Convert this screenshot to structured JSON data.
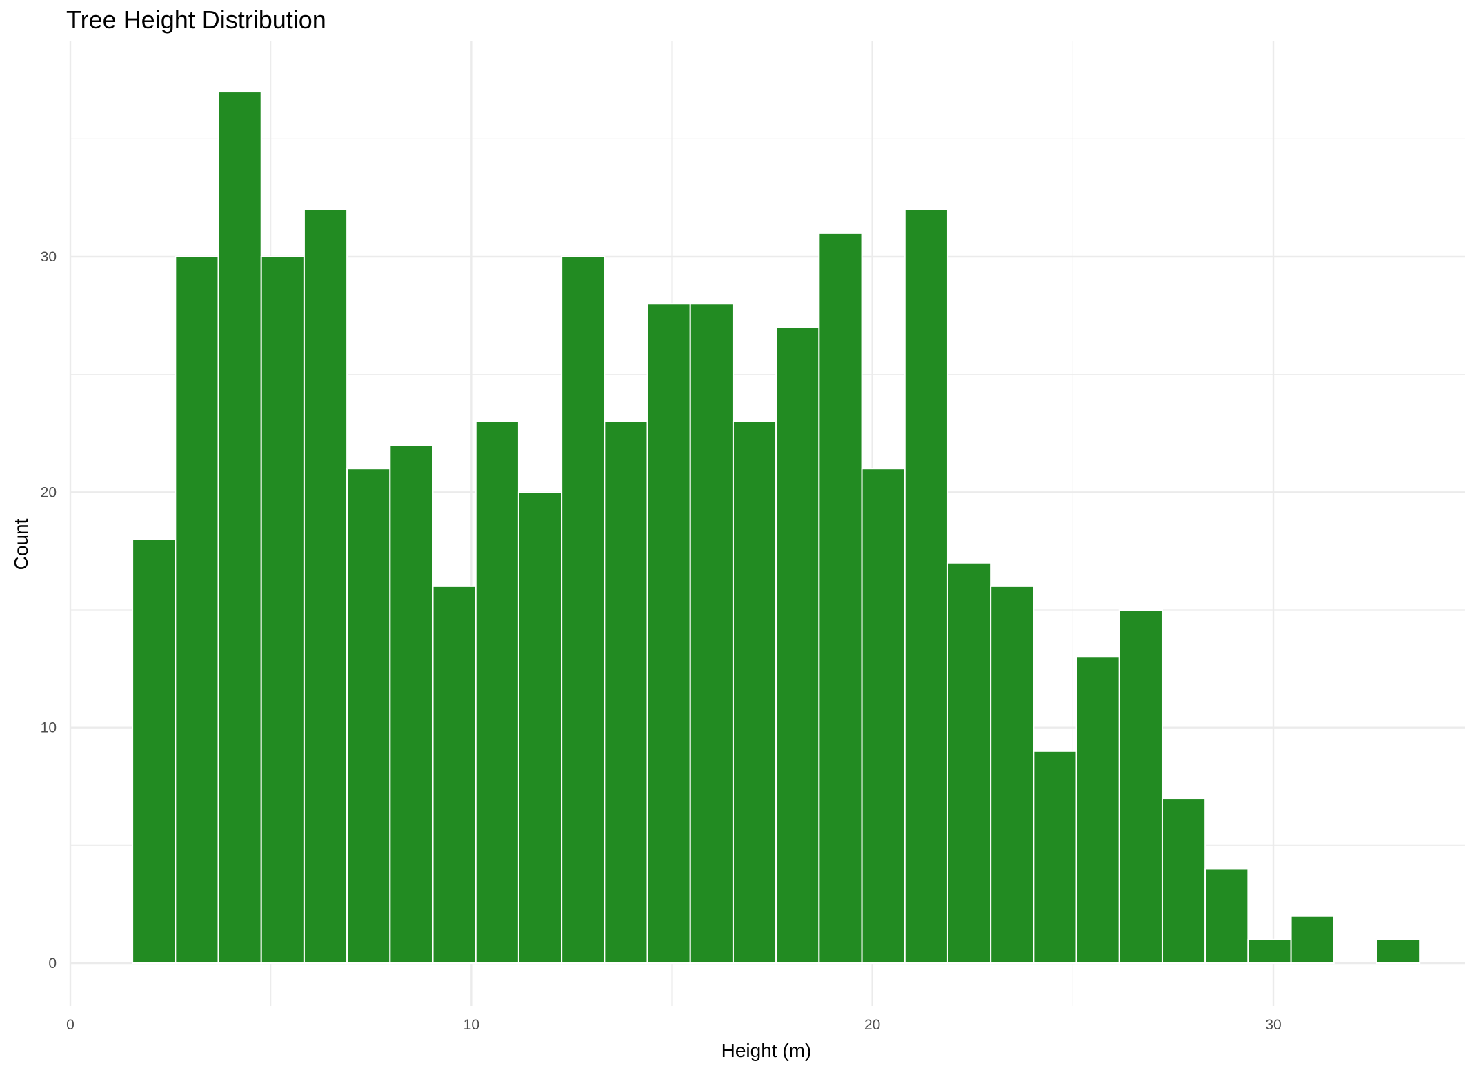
{
  "chart_data": {
    "type": "bar",
    "title": "Tree Height Distribution",
    "xlabel": "Height (m)",
    "ylabel": "Count",
    "bar_color": "#228B22",
    "bar_outline_color": "#ffffff",
    "grid": true,
    "xlim": [
      0,
      35
    ],
    "ylim": [
      0,
      37
    ],
    "x_ticks": [
      0,
      10,
      20,
      30
    ],
    "y_ticks": [
      0,
      10,
      20,
      30
    ],
    "bins": [
      {
        "x_start": 1.55,
        "x_end": 2.62,
        "count": 18
      },
      {
        "x_start": 2.62,
        "x_end": 3.69,
        "count": 30
      },
      {
        "x_start": 3.69,
        "x_end": 4.76,
        "count": 37
      },
      {
        "x_start": 4.76,
        "x_end": 5.83,
        "count": 30
      },
      {
        "x_start": 5.83,
        "x_end": 6.9,
        "count": 32
      },
      {
        "x_start": 6.9,
        "x_end": 7.97,
        "count": 21
      },
      {
        "x_start": 7.97,
        "x_end": 9.04,
        "count": 22
      },
      {
        "x_start": 9.04,
        "x_end": 10.11,
        "count": 16
      },
      {
        "x_start": 10.11,
        "x_end": 11.18,
        "count": 23
      },
      {
        "x_start": 11.18,
        "x_end": 12.25,
        "count": 20
      },
      {
        "x_start": 12.25,
        "x_end": 13.32,
        "count": 30
      },
      {
        "x_start": 13.32,
        "x_end": 14.39,
        "count": 23
      },
      {
        "x_start": 14.39,
        "x_end": 15.46,
        "count": 28
      },
      {
        "x_start": 15.46,
        "x_end": 16.53,
        "count": 28
      },
      {
        "x_start": 16.53,
        "x_end": 17.6,
        "count": 23
      },
      {
        "x_start": 17.6,
        "x_end": 18.67,
        "count": 27
      },
      {
        "x_start": 18.67,
        "x_end": 19.74,
        "count": 31
      },
      {
        "x_start": 19.74,
        "x_end": 20.81,
        "count": 21
      },
      {
        "x_start": 20.81,
        "x_end": 21.88,
        "count": 32
      },
      {
        "x_start": 21.88,
        "x_end": 22.95,
        "count": 17
      },
      {
        "x_start": 22.95,
        "x_end": 24.02,
        "count": 16
      },
      {
        "x_start": 24.02,
        "x_end": 25.09,
        "count": 9
      },
      {
        "x_start": 25.09,
        "x_end": 26.16,
        "count": 13
      },
      {
        "x_start": 26.16,
        "x_end": 27.23,
        "count": 15
      },
      {
        "x_start": 27.23,
        "x_end": 28.3,
        "count": 7
      },
      {
        "x_start": 28.3,
        "x_end": 29.37,
        "count": 4
      },
      {
        "x_start": 29.37,
        "x_end": 30.44,
        "count": 1
      },
      {
        "x_start": 30.44,
        "x_end": 31.51,
        "count": 2
      },
      {
        "x_start": 31.51,
        "x_end": 32.58,
        "count": 0
      },
      {
        "x_start": 32.58,
        "x_end": 33.65,
        "count": 1
      }
    ]
  }
}
